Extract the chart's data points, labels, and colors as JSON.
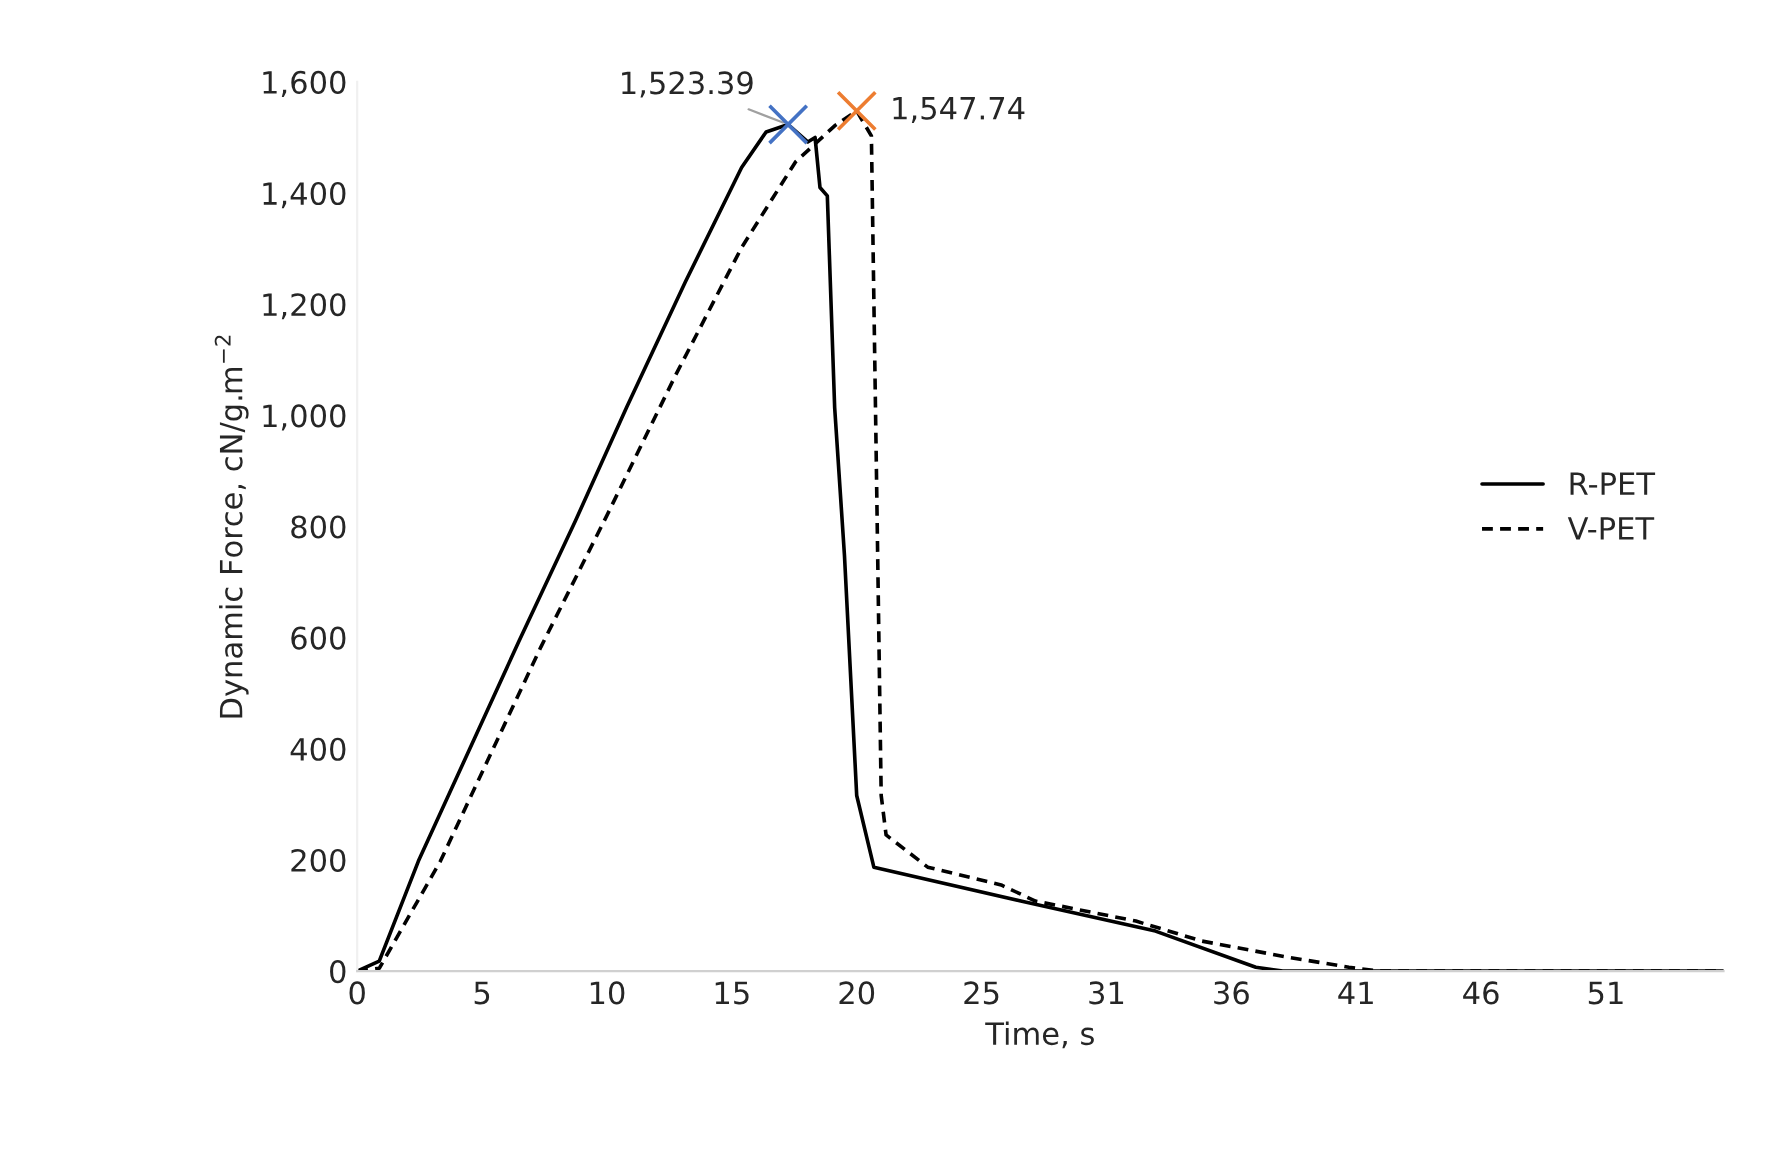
{
  "chart_data": {
    "type": "line",
    "xlabel": "Time, s",
    "ylabel": "Dynamic Force, cN/g.m$^{−2}$",
    "xlim": [
      0,
      55.8
    ],
    "xticks": [
      {
        "value": 0,
        "label": "0"
      },
      {
        "value": 5.1,
        "label": "5"
      },
      {
        "value": 10.2,
        "label": "10"
      },
      {
        "value": 15.3,
        "label": "15"
      },
      {
        "value": 20.4,
        "label": "20"
      },
      {
        "value": 25.5,
        "label": "25"
      },
      {
        "value": 30.6,
        "label": "31"
      },
      {
        "value": 35.7,
        "label": "36"
      },
      {
        "value": 40.8,
        "label": "41"
      },
      {
        "value": 45.9,
        "label": "46"
      },
      {
        "value": 51,
        "label": "51"
      }
    ],
    "ylim": [
      0,
      1600
    ],
    "yticks": [
      {
        "value": 0,
        "label": "0"
      },
      {
        "value": 200,
        "label": "200"
      },
      {
        "value": 400,
        "label": "400"
      },
      {
        "value": 600,
        "label": "600"
      },
      {
        "value": 800,
        "label": "800"
      },
      {
        "value": 1000,
        "label": "1,000"
      },
      {
        "value": 1200,
        "label": "1,200"
      },
      {
        "value": 1400,
        "label": "1,400"
      },
      {
        "value": 1600,
        "label": "1,600"
      }
    ],
    "grid": false,
    "legend": "right",
    "series": [
      {
        "name": "R-PET",
        "color": "#000000",
        "line_style": "solid",
        "marker": "none",
        "x": [
          0,
          0.9,
          2.5,
          6.6,
          8.9,
          11.0,
          13.4,
          15.7,
          16.7,
          17.6,
          18.4,
          18.7,
          18.9,
          19.2,
          19.5,
          19.9,
          20.4,
          21.1,
          27.1,
          32.6,
          36.7,
          37.8,
          55.8
        ],
        "values": [
          0,
          18,
          198,
          593,
          809,
          1014,
          1240,
          1446,
          1510,
          1523.39,
          1492,
          1500,
          1410,
          1395,
          1014,
          748,
          316,
          187,
          126,
          72,
          7,
          0,
          0
        ]
      },
      {
        "name": "V-PET",
        "color": "#000000",
        "line_style": "dashed",
        "marker": "none",
        "x": [
          0,
          0.9,
          3.4,
          7.5,
          10.2,
          13.0,
          15.7,
          17.9,
          19.5,
          20.4,
          21.0,
          21.2,
          21.4,
          21.6,
          23.3,
          26.3,
          27.7,
          31.8,
          34.5,
          38.0,
          40.5,
          41.7,
          55.8
        ],
        "values": [
          0,
          5,
          198,
          583,
          820,
          1072,
          1302,
          1456,
          1521,
          1547.74,
          1503,
          917,
          316,
          245,
          187,
          155,
          126,
          90,
          54,
          25,
          7,
          0,
          0
        ]
      },
      {
        "type": "scatter",
        "color": "#4472c4",
        "marker": "cross",
        "x": [
          17.6
        ],
        "values": [
          1523.39
        ],
        "value_labels": [
          "1,523.39"
        ]
      },
      {
        "type": "scatter",
        "color": "#ed7d31",
        "marker": "cross",
        "x": [
          20.4
        ],
        "values": [
          1547.74
        ],
        "value_labels": [
          "1,547.74"
        ]
      }
    ]
  }
}
